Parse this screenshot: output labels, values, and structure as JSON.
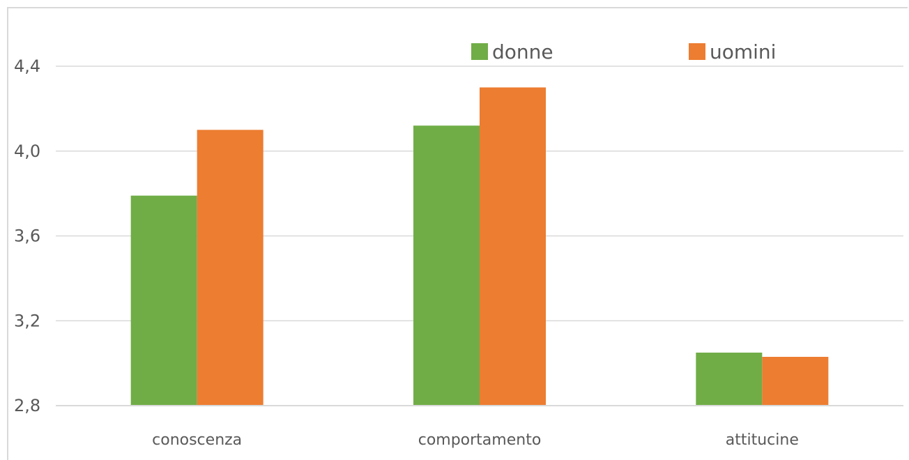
{
  "chart_data": {
    "type": "bar",
    "title": "",
    "xlabel": "",
    "ylabel": "",
    "categories": [
      "conoscenza",
      "comportamento",
      "attitucine"
    ],
    "series": [
      {
        "name": "donne",
        "values": [
          3.79,
          4.12,
          3.05
        ],
        "color": "#70ad47"
      },
      {
        "name": "uomini",
        "values": [
          4.1,
          4.3,
          3.03
        ],
        "color": "#ed7d31"
      }
    ],
    "ylim": [
      2.8,
      4.4
    ],
    "yticks": [
      "2,8",
      "3,2",
      "3,6",
      "4,0",
      "4,4"
    ],
    "grid": true,
    "legend": "top-right",
    "gridline_color": "#d9d9d9",
    "text_color": "#595959"
  }
}
